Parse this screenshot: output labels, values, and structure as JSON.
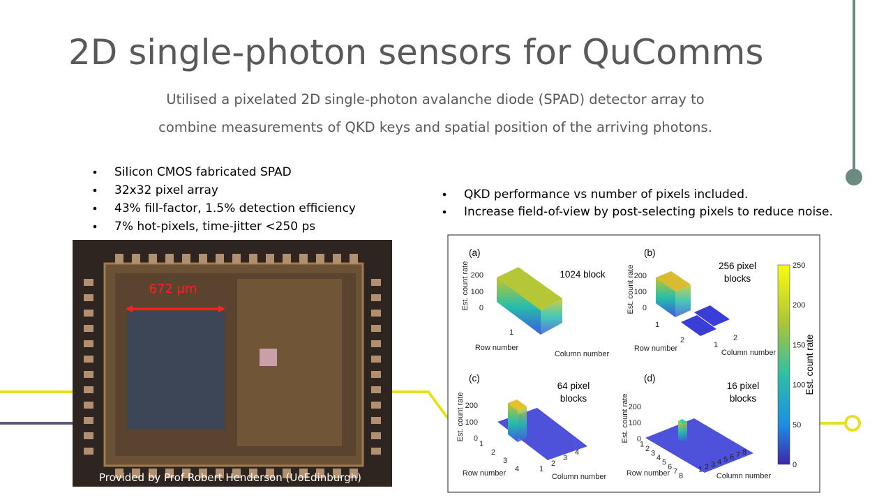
{
  "header": {
    "title": "2D single-photon sensors for QuComms",
    "subtitle_lines": [
      "Utilised a pixelated 2D single-photon avalanche diode (SPAD) detector array to",
      "combine measurements of QKD keys and spatial position of the arriving photons."
    ]
  },
  "left_bullets": [
    "Silicon CMOS fabricated SPAD",
    "32x32 pixel array",
    "43% fill-factor, 1.5% detection efficiency",
    "7% hot-pixels, time-jitter <250 ps"
  ],
  "right_bullets": [
    "QKD performance vs number of pixels included.",
    "Increase field-of-view by post-selecting pixels to reduce noise."
  ],
  "photo": {
    "scale_label": "672 µm",
    "caption": "Provided by Prof Robert Henderson (UoEdinburgh)"
  },
  "figure": {
    "panels": [
      {
        "tag": "(a)",
        "title_lines": [
          "1024 block"
        ],
        "y_label": "Est. count rate",
        "y_ticks": [
          "0",
          "100",
          "200"
        ],
        "row_label": "Row number",
        "row_ticks": [
          "1"
        ],
        "col_label": "Column number"
      },
      {
        "tag": "(b)",
        "title_lines": [
          "256 pixel",
          "blocks"
        ],
        "y_label": "Est. count rate",
        "y_ticks": [
          "0",
          "100",
          "200"
        ],
        "row_label": "Row number",
        "row_ticks": [
          "1",
          "2"
        ],
        "col_label": "Column number",
        "col_ticks": [
          "1",
          "2"
        ]
      },
      {
        "tag": "(c)",
        "title_lines": [
          "64 pixel",
          "blocks"
        ],
        "y_label": "Est. count rate",
        "y_ticks": [
          "0",
          "100",
          "200"
        ],
        "row_label": "Row number",
        "row_ticks": [
          "1",
          "2",
          "3",
          "4"
        ],
        "col_label": "Column number",
        "col_ticks": [
          "1",
          "2",
          "3",
          "4"
        ]
      },
      {
        "tag": "(d)",
        "title_lines": [
          "16 pixel",
          "blocks"
        ],
        "y_label": "Est. count rate",
        "y_ticks": [
          "0",
          "100",
          "200"
        ],
        "row_label": "Row number",
        "row_ticks": [
          "1",
          "2",
          "3",
          "4",
          "5",
          "6",
          "7",
          "8"
        ],
        "col_label": "Column number",
        "col_ticks": [
          "1",
          "2",
          "3",
          "4",
          "5",
          "6",
          "7",
          "8"
        ]
      }
    ],
    "colorbar": {
      "label": "Est. count rate",
      "ticks": [
        "0",
        "50",
        "100",
        "150",
        "200",
        "250"
      ]
    }
  }
}
